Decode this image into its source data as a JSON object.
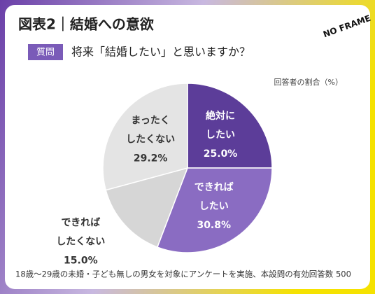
{
  "title": "図表2｜結婚への意欲",
  "logo": "NO FRAME",
  "question_badge": "質問",
  "question": "将来「結婚したい」と思いますか？",
  "chart_data": {
    "type": "pie",
    "note": "回答者の割合（%）",
    "categories": [
      [
        "絶対に",
        "したい"
      ],
      [
        "できれば",
        "したい"
      ],
      [
        "できれば",
        "したくない"
      ],
      [
        "まったく",
        "したくない"
      ]
    ],
    "values": [
      25.0,
      30.8,
      15.0,
      29.2
    ],
    "value_labels": [
      "25.0%",
      "30.8%",
      "15.0%",
      "29.2%"
    ],
    "colors": [
      "#5c3d99",
      "#8a6cc2",
      "#d6d6d6",
      "#e4e4e4"
    ],
    "label_colors": [
      "#ffffff",
      "#ffffff",
      "#333333",
      "#333333"
    ]
  },
  "footer": "18歳～29歳の未婚・子ども無しの男女を対象にアンケートを実施、本設問の有効回答数 500"
}
